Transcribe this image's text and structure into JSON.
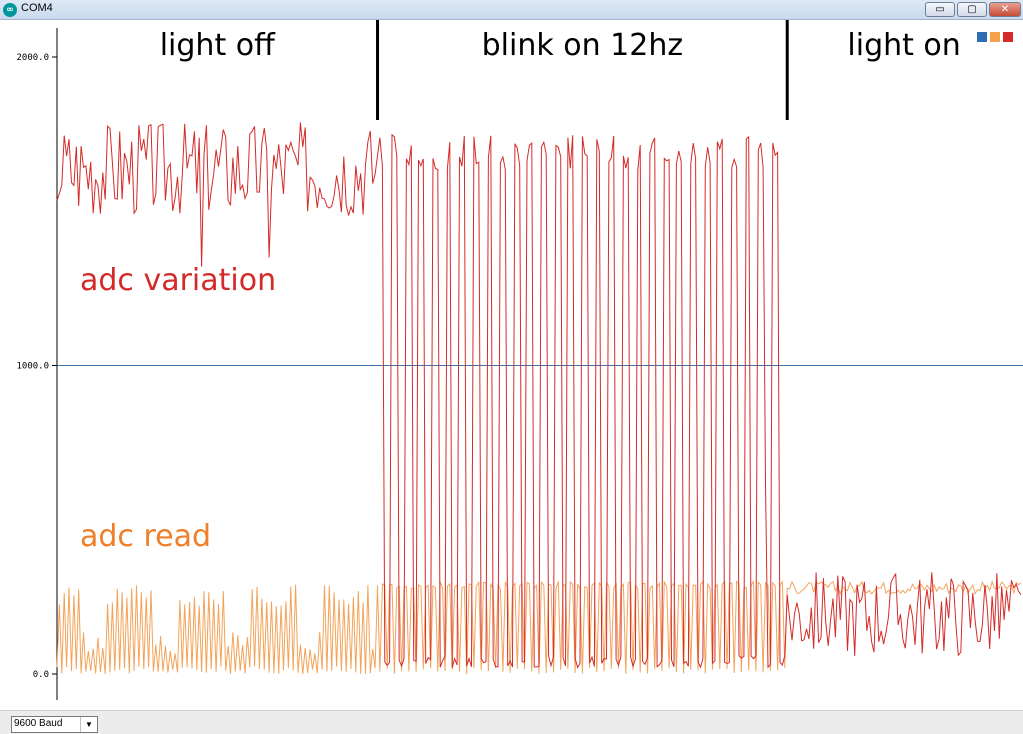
{
  "window": {
    "title": "COM4",
    "minimize_glyph": "▭",
    "maximize_glyph": "▢",
    "close_glyph": "✕"
  },
  "chart_data": {
    "type": "line",
    "title": "",
    "xlabel": "",
    "ylabel": "",
    "ylim": [
      0,
      2000
    ],
    "yticks": [
      {
        "value": 0,
        "label": "0.0"
      },
      {
        "value": 1000,
        "label": "1000.0"
      },
      {
        "value": 2000,
        "label": "2000.0"
      }
    ],
    "reference_line": {
      "value": 1000,
      "color": "#3a74b0"
    },
    "legend": {
      "position": "top-right",
      "colors": [
        "#2f6eb5",
        "#f5a04a",
        "#d42b28"
      ]
    },
    "colors": {
      "read": "#f3a45a",
      "variation": "#d42b28"
    },
    "section_labels": [
      {
        "text": "light off",
        "start": 0,
        "end": 133
      },
      {
        "text": "blink on 12hz",
        "start": 133,
        "end": 303
      },
      {
        "text": "light on",
        "start": 303,
        "end": 400
      }
    ],
    "segments": {
      "light_off": {
        "samples": [
          0,
          132
        ],
        "read_levels": [
          0,
          290
        ],
        "variation_range": [
          1480,
          1790
        ],
        "variation_dips": [
          {
            "index": 60,
            "value": 1320
          },
          {
            "index": 88,
            "value": 1350
          }
        ]
      },
      "blink": {
        "samples": [
          133,
          302
        ],
        "cycles": 30,
        "read_levels": [
          0,
          300
        ],
        "variation_levels": [
          20,
          1750
        ],
        "variation_anomaly": {
          "value": 620
        }
      },
      "light_on": {
        "samples": [
          303,
          400
        ],
        "read_range": [
          240,
          300
        ],
        "variation_range": [
          60,
          340
        ]
      }
    },
    "annotations": [
      {
        "text": "adc variation",
        "color": "#d42b28"
      },
      {
        "text": "adc read",
        "color": "#f07f2b"
      }
    ]
  },
  "status": {
    "baud": "9600 Baud",
    "dropdown_glyph": "▼"
  }
}
